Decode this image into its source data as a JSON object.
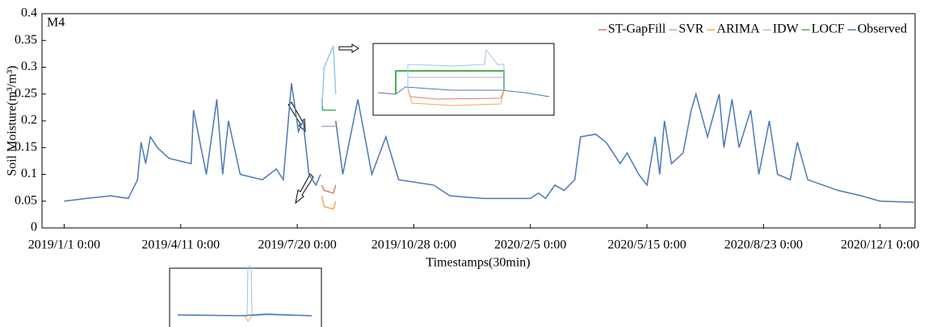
{
  "chart_data": {
    "type": "line",
    "panel_label": "M4",
    "x_label": "Timestamps(30min)",
    "y_label": "Soil Moisture(m³/m³)",
    "xlim": [
      "2018/12/13 0:00",
      "2020/12/31 0:00"
    ],
    "xticks": [
      "2019/1/1 0:00",
      "2019/4/11 0:00",
      "2019/7/20 0:00",
      "2019/10/28 0:00",
      "2020/2/5 0:00",
      "2020/5/15 0:00",
      "2020/8/23 0:00",
      "2020/12/1 0:00"
    ],
    "ylim": [
      0,
      0.4
    ],
    "yticks": [
      0,
      0.05,
      0.1,
      0.15,
      0.2,
      0.25,
      0.3,
      0.35,
      0.4
    ],
    "legend": "upper right",
    "series": [
      {
        "name": "ST-GapFill",
        "color": "#e07a6e",
        "x": [
          "2019/8/10 0:00",
          "2019/8/12 0:00",
          "2019/8/20 0:00",
          "2019/8/22 0:00"
        ],
        "values": [
          0.08,
          0.07,
          0.065,
          0.08
        ]
      },
      {
        "name": "SVR",
        "color": "#b8a9c9",
        "x": [
          "2019/8/10 0:00",
          "2019/8/22 0:00"
        ],
        "values": [
          0.19,
          0.19
        ]
      },
      {
        "name": "ARIMA",
        "color": "#f2a65a",
        "x": [
          "2019/8/10 0:00",
          "2019/8/12 0:00",
          "2019/8/20 0:00",
          "2019/8/22 0:00"
        ],
        "values": [
          0.06,
          0.04,
          0.035,
          0.05
        ]
      },
      {
        "name": "IDW",
        "color": "#92c9e8",
        "x": [
          "2019/8/10 0:00",
          "2019/8/12 0:00",
          "2019/8/20 0:00",
          "2019/8/22 0:00"
        ],
        "values": [
          0.22,
          0.3,
          0.34,
          0.25
        ]
      },
      {
        "name": "LOCF",
        "color": "#4caf50",
        "x": [
          "2019/8/10 0:00",
          "2019/8/11 0:00",
          "2019/8/22 0:00"
        ],
        "values": [
          0.24,
          0.22,
          0.22
        ]
      },
      {
        "name": "Observed",
        "color": "#4a78b5",
        "x": [
          "2019/1/1 0:00",
          "2019/1/20 0:00",
          "2019/2/10 0:00",
          "2019/2/25 0:00",
          "2019/3/5 0:00",
          "2019/3/8 0:00",
          "2019/3/12 0:00",
          "2019/3/16 0:00",
          "2019/3/22 0:00",
          "2019/4/1 0:00",
          "2019/4/20 0:00",
          "2019/4/22 0:00",
          "2019/5/3 0:00",
          "2019/5/12 0:00",
          "2019/5/17 0:00",
          "2019/5/22 0:00",
          "2019/6/1 0:00",
          "2019/6/20 0:00",
          "2019/7/2 0:00",
          "2019/7/8 0:00",
          "2019/7/15 0:00",
          "2019/7/21 0:00",
          "2019/7/25 0:00",
          "2019/7/30 0:00",
          "2019/8/5 0:00",
          "2019/8/9 0:00",
          "2019/8/15 0:00",
          "2019/8/22 0:00",
          "2019/8/28 0:00",
          "2019/9/10 0:00",
          "2019/9/22 0:00",
          "2019/10/4 0:00",
          "2019/10/15 0:00",
          "2019/11/14 0:00",
          "2019/11/28 0:00",
          "2019/12/26 0:00",
          "2020/2/5 0:00",
          "2020/2/12 0:00",
          "2020/2/18 0:00",
          "2020/2/26 0:00",
          "2020/3/5 0:00",
          "2020/3/14 0:00",
          "2020/3/19 0:00",
          "2020/4/1 0:00",
          "2020/4/10 0:00",
          "2020/4/22 0:00",
          "2020/4/28 0:00",
          "2020/5/8 0:00",
          "2020/5/15 0:00",
          "2020/5/22 0:00",
          "2020/5/26 0:00",
          "2020/5/30 0:00",
          "2020/6/5 0:00",
          "2020/6/15 0:00",
          "2020/6/22 0:00",
          "2020/6/26 0:00",
          "2020/7/6 0:00",
          "2020/7/16 0:00",
          "2020/7/20 0:00",
          "2020/7/27 0:00",
          "2020/8/2 0:00",
          "2020/8/12 0:00",
          "2020/8/19 0:00",
          "2020/8/28 0:00",
          "2020/9/4 0:00",
          "2020/9/15 0:00",
          "2020/9/21 0:00",
          "2020/9/30 0:00",
          "2020/10/26 0:00",
          "2020/11/15 0:00",
          "2020/12/1 0:00",
          "2020/12/30 0:00"
        ],
        "values": [
          0.05,
          0.055,
          0.06,
          0.055,
          0.09,
          0.16,
          0.12,
          0.17,
          0.15,
          0.13,
          0.12,
          0.22,
          0.1,
          0.24,
          0.1,
          0.2,
          0.1,
          0.09,
          0.11,
          0.09,
          0.27,
          0.18,
          0.2,
          0.1,
          0.08,
          0.1,
          null,
          0.2,
          0.1,
          0.24,
          0.1,
          0.17,
          0.09,
          0.08,
          0.06,
          0.055,
          0.055,
          0.065,
          0.055,
          0.08,
          0.07,
          0.09,
          0.17,
          0.175,
          0.16,
          0.12,
          0.14,
          0.1,
          0.08,
          0.17,
          0.1,
          0.2,
          0.12,
          0.14,
          0.22,
          0.25,
          0.17,
          0.25,
          0.15,
          0.24,
          0.15,
          0.22,
          0.1,
          0.2,
          0.1,
          0.09,
          0.16,
          0.09,
          0.07,
          0.06,
          0.05,
          0.048
        ]
      }
    ]
  }
}
